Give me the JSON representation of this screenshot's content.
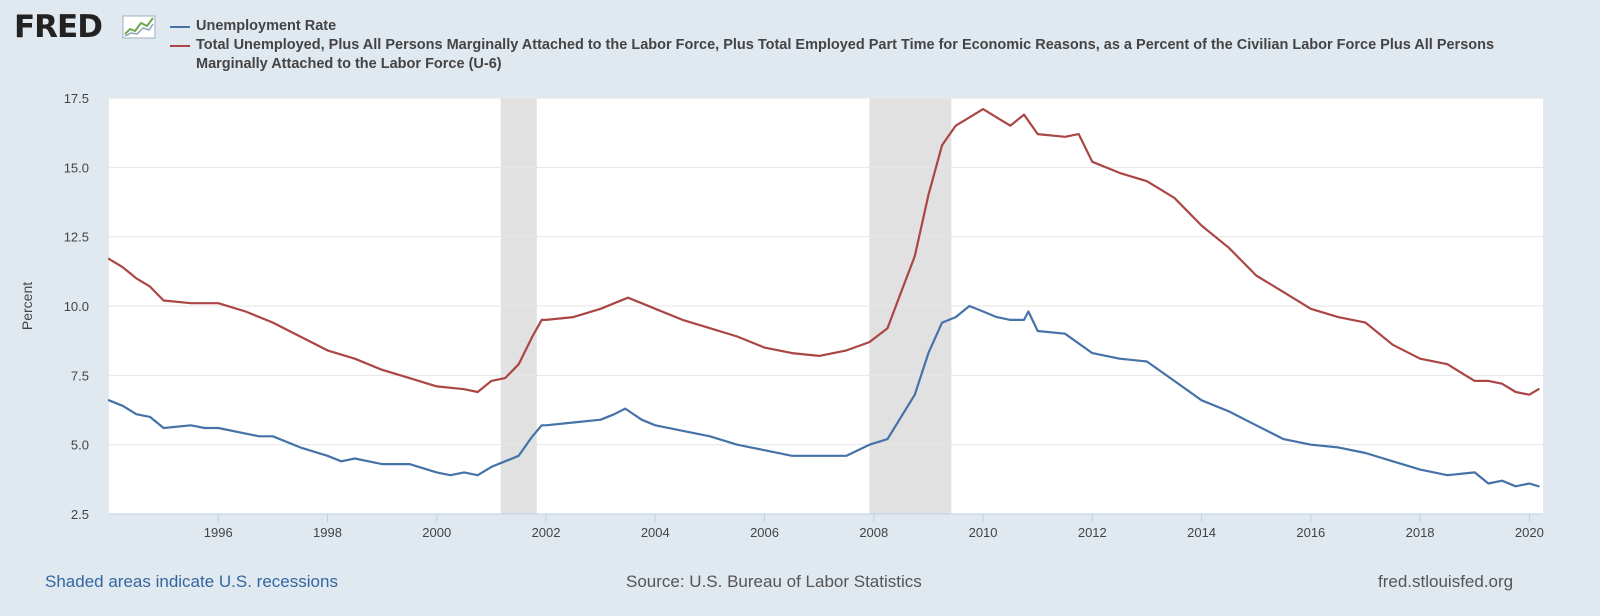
{
  "logo": {
    "text": "FRED"
  },
  "footer": {
    "recession_note": "Shaded areas indicate U.S. recessions",
    "source": "Source: U.S. Bureau of Labor Statistics",
    "site": "fred.stlouisfed.org"
  },
  "colors": {
    "background": "#e1e9f0",
    "plot_background": "#ffffff",
    "recession_shade": "#e1e1e1",
    "unemployment": "#4572a7",
    "u6": "#aa4643"
  },
  "chart_data": {
    "type": "line",
    "title": "",
    "xlabel": "",
    "ylabel": "Percent",
    "xlim": [
      1994.0,
      2020.25
    ],
    "ylim": [
      2.5,
      17.5
    ],
    "y_ticks": [
      2.5,
      5.0,
      7.5,
      10.0,
      12.5,
      15.0,
      17.5
    ],
    "y_tick_labels": [
      "2.5",
      "5.0",
      "7.5",
      "10.0",
      "12.5",
      "15.0",
      "17.5"
    ],
    "x_ticks": [
      1996,
      1998,
      2000,
      2002,
      2004,
      2006,
      2008,
      2010,
      2012,
      2014,
      2016,
      2018,
      2020
    ],
    "x_tick_labels": [
      "1996",
      "1998",
      "2000",
      "2002",
      "2004",
      "2006",
      "2008",
      "2010",
      "2012",
      "2014",
      "2016",
      "2018",
      "2020"
    ],
    "grid": true,
    "legend_position": "top",
    "recessions": [
      {
        "start": 2001.17,
        "end": 2001.83
      },
      {
        "start": 2007.92,
        "end": 2009.42
      }
    ],
    "series": [
      {
        "name": "Unemployment Rate",
        "color": "#4572a7",
        "x": [
          1994.0,
          1994.25,
          1994.5,
          1994.75,
          1995.0,
          1995.5,
          1995.75,
          1996.0,
          1996.5,
          1996.75,
          1997.0,
          1997.5,
          1998.0,
          1998.25,
          1998.5,
          1999.0,
          1999.5,
          2000.0,
          2000.25,
          2000.5,
          2000.75,
          2001.0,
          2001.25,
          2001.5,
          2001.75,
          2001.92,
          2002.0,
          2002.5,
          2003.0,
          2003.25,
          2003.45,
          2003.75,
          2004.0,
          2004.5,
          2005.0,
          2005.5,
          2006.0,
          2006.5,
          2007.0,
          2007.5,
          2007.92,
          2008.25,
          2008.5,
          2008.75,
          2009.0,
          2009.25,
          2009.5,
          2009.75,
          2010.0,
          2010.25,
          2010.5,
          2010.75,
          2010.83,
          2011.0,
          2011.5,
          2012.0,
          2012.5,
          2013.0,
          2013.5,
          2014.0,
          2014.5,
          2015.0,
          2015.5,
          2016.0,
          2016.5,
          2017.0,
          2017.5,
          2018.0,
          2018.5,
          2019.0,
          2019.25,
          2019.5,
          2019.75,
          2020.0,
          2020.17
        ],
        "values": [
          6.6,
          6.4,
          6.1,
          6.0,
          5.6,
          5.7,
          5.6,
          5.6,
          5.4,
          5.3,
          5.3,
          4.9,
          4.6,
          4.4,
          4.5,
          4.3,
          4.3,
          4.0,
          3.9,
          4.0,
          3.9,
          4.2,
          4.4,
          4.6,
          5.3,
          5.7,
          5.7,
          5.8,
          5.9,
          6.1,
          6.3,
          5.9,
          5.7,
          5.5,
          5.3,
          5.0,
          4.8,
          4.6,
          4.6,
          4.6,
          5.0,
          5.2,
          6.0,
          6.8,
          8.3,
          9.4,
          9.6,
          10.0,
          9.8,
          9.6,
          9.5,
          9.5,
          9.8,
          9.1,
          9.0,
          8.3,
          8.1,
          8.0,
          7.3,
          6.6,
          6.2,
          5.7,
          5.2,
          5.0,
          4.9,
          4.7,
          4.4,
          4.1,
          3.9,
          4.0,
          3.6,
          3.7,
          3.5,
          3.6,
          3.5
        ]
      },
      {
        "name": "Total Unemployed, Plus All Persons Marginally Attached to the Labor Force, Plus Total Employed Part Time for Economic Reasons, as a Percent of the Civilian Labor Force Plus All Persons Marginally Attached to the Labor Force (U-6)",
        "color": "#aa4643",
        "x": [
          1994.0,
          1994.25,
          1994.5,
          1994.75,
          1995.0,
          1995.5,
          1996.0,
          1996.5,
          1997.0,
          1997.5,
          1998.0,
          1998.5,
          1999.0,
          1999.5,
          2000.0,
          2000.5,
          2000.75,
          2001.0,
          2001.25,
          2001.5,
          2001.75,
          2001.92,
          2002.0,
          2002.5,
          2003.0,
          2003.25,
          2003.5,
          2003.75,
          2004.0,
          2004.5,
          2005.0,
          2005.5,
          2006.0,
          2006.5,
          2007.0,
          2007.5,
          2007.92,
          2008.25,
          2008.5,
          2008.75,
          2009.0,
          2009.25,
          2009.5,
          2009.75,
          2010.0,
          2010.25,
          2010.5,
          2010.75,
          2011.0,
          2011.5,
          2011.75,
          2012.0,
          2012.5,
          2013.0,
          2013.5,
          2014.0,
          2014.5,
          2015.0,
          2015.5,
          2016.0,
          2016.5,
          2017.0,
          2017.5,
          2018.0,
          2018.5,
          2018.83,
          2019.0,
          2019.25,
          2019.5,
          2019.75,
          2020.0,
          2020.17
        ],
        "values": [
          11.7,
          11.4,
          11.0,
          10.7,
          10.2,
          10.1,
          10.1,
          9.8,
          9.4,
          8.9,
          8.4,
          8.1,
          7.7,
          7.4,
          7.1,
          7.0,
          6.9,
          7.3,
          7.4,
          7.9,
          8.9,
          9.5,
          9.5,
          9.6,
          9.9,
          10.1,
          10.3,
          10.1,
          9.9,
          9.5,
          9.2,
          8.9,
          8.5,
          8.3,
          8.2,
          8.4,
          8.7,
          9.2,
          10.5,
          11.8,
          14.0,
          15.8,
          16.5,
          16.8,
          17.1,
          16.8,
          16.5,
          16.9,
          16.2,
          16.1,
          16.2,
          15.2,
          14.8,
          14.5,
          13.9,
          12.9,
          12.1,
          11.1,
          10.5,
          9.9,
          9.6,
          9.4,
          8.6,
          8.1,
          7.9,
          7.5,
          7.3,
          7.3,
          7.2,
          6.9,
          6.8,
          7.0
        ]
      }
    ]
  }
}
